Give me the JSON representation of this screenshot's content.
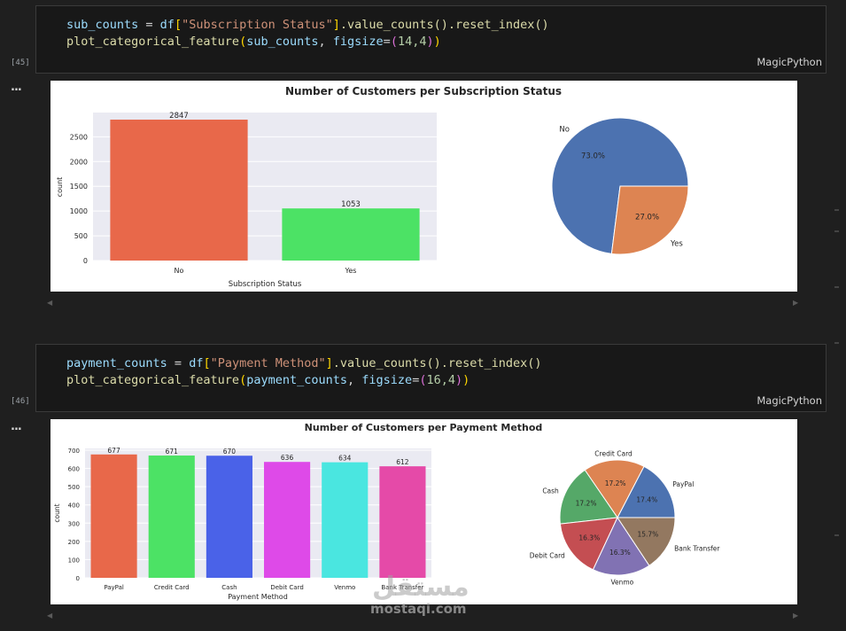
{
  "cells": [
    {
      "exec_count": "[45]",
      "code_line1": {
        "var1": "sub_counts",
        "eq": " = ",
        "df": "df",
        "col": "\"Subscription Status\"",
        "tail": ".value_counts().reset_index()"
      },
      "code_line2": {
        "fn": "plot_categorical_feature",
        "arg": "sub_counts",
        "kw": "figsize",
        "val": "14,4"
      },
      "language": "MagicPython",
      "output_menu": "...",
      "chart": {
        "title": "Number of Customers per Subscription Status",
        "xlabel": "Subscription Status",
        "ylabel": "count"
      }
    },
    {
      "exec_count": "[46]",
      "code_line1": {
        "var1": "payment_counts",
        "eq": " = ",
        "df": "df",
        "col": "\"Payment Method\"",
        "tail": ".value_counts().reset_index()"
      },
      "code_line2": {
        "fn": "plot_categorical_feature",
        "arg": "payment_counts",
        "kw": "figsize",
        "val": "16,4"
      },
      "language": "MagicPython",
      "output_menu": "...",
      "chart": {
        "title": "Number of Customers per Payment Method",
        "xlabel": "Payment Method",
        "ylabel": "count"
      }
    }
  ],
  "watermark": {
    "arabic": "مستقل",
    "site": "mostaqi.com"
  },
  "chart_data": [
    {
      "type": "bar",
      "title": "Number of Customers per Subscription Status",
      "categories": [
        "No",
        "Yes"
      ],
      "values": [
        2847,
        1053
      ],
      "value_labels": [
        "2847",
        "1053"
      ],
      "xlabel": "Subscription Status",
      "ylabel": "count",
      "ylim": [
        0,
        2990
      ],
      "yticks": [
        0,
        500,
        1000,
        1500,
        2000,
        2500
      ],
      "colors": [
        "#e8684a",
        "#4ce265"
      ],
      "grid": true
    },
    {
      "type": "pie",
      "labels": [
        "No",
        "Yes"
      ],
      "values": [
        73.0,
        27.0
      ],
      "pct_labels": [
        "73.0%",
        "27.0%"
      ],
      "colors": [
        "#4c72b0",
        "#dd8452"
      ]
    },
    {
      "type": "bar",
      "title": "Number of Customers per Payment Method",
      "categories": [
        "PayPal",
        "Credit Card",
        "Cash",
        "Debit Card",
        "Venmo",
        "Bank Transfer"
      ],
      "values": [
        677,
        671,
        670,
        636,
        634,
        612
      ],
      "value_labels": [
        "677",
        "671",
        "670",
        "636",
        "634",
        "612"
      ],
      "xlabel": "Payment Method",
      "ylabel": "count",
      "ylim": [
        0,
        710
      ],
      "yticks": [
        0,
        100,
        200,
        300,
        400,
        500,
        600,
        700
      ],
      "colors": [
        "#e8684a",
        "#4ce265",
        "#4a62e8",
        "#de4ae8",
        "#4ae6e0",
        "#e54aa8"
      ],
      "grid": true
    },
    {
      "type": "pie",
      "labels": [
        "PayPal",
        "Credit Card",
        "Cash",
        "Debit Card",
        "Venmo",
        "Bank Transfer"
      ],
      "values": [
        17.4,
        17.2,
        17.2,
        16.3,
        16.3,
        15.7
      ],
      "pct_labels": [
        "17.4%",
        "17.2%",
        "17.2%",
        "16.3%",
        "16.3%",
        "15.7%"
      ],
      "colors": [
        "#4c72b0",
        "#dd8452",
        "#55a868",
        "#c44e52",
        "#8172b3",
        "#937860"
      ]
    }
  ]
}
